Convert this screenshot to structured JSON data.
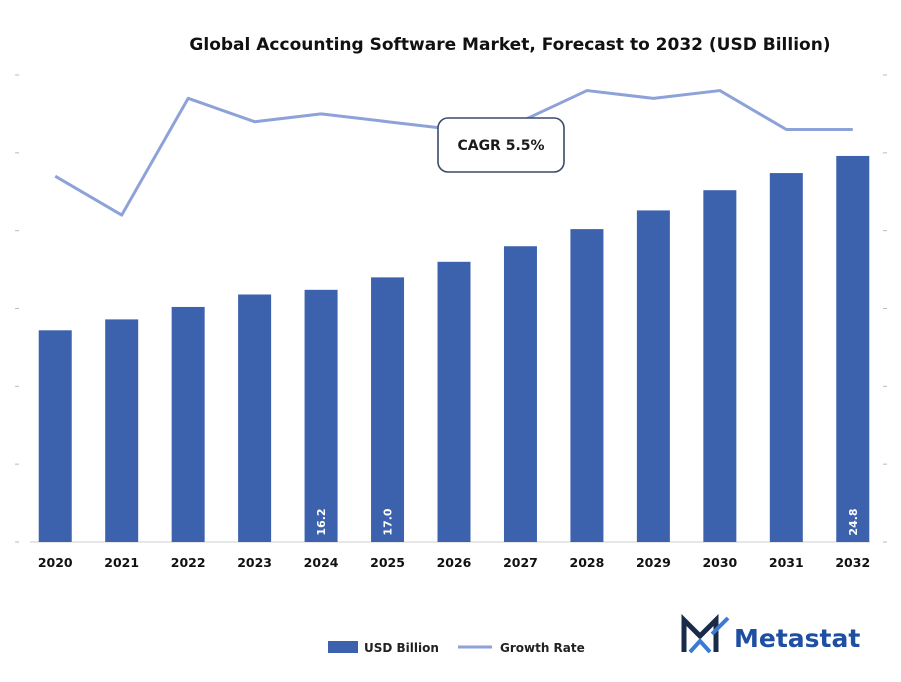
{
  "chart_data": {
    "type": "bar",
    "title": "Global Accounting Software Market, Forecast to 2032 (USD Billion)",
    "categories": [
      "2020",
      "2021",
      "2022",
      "2023",
      "2024",
      "2025",
      "2026",
      "2027",
      "2028",
      "2029",
      "2030",
      "2031",
      "2032"
    ],
    "series": [
      {
        "name": "USD Billion",
        "type": "bar",
        "axis": "left",
        "color": "#3c62ad",
        "values": [
          13.6,
          14.3,
          15.1,
          15.9,
          16.2,
          17.0,
          18.0,
          19.0,
          20.1,
          21.3,
          22.6,
          23.7,
          24.8
        ],
        "labels": [
          "",
          "",
          "",
          "",
          "16.2",
          "17.0",
          "",
          "",
          "",
          "",
          "",
          "",
          "24.8"
        ]
      },
      {
        "name": "Growth Rate",
        "type": "line",
        "axis": "right",
        "color": "#8da2d8",
        "values": [
          4.7,
          4.2,
          5.7,
          5.4,
          5.5,
          5.4,
          5.3,
          5.4,
          5.8,
          5.7,
          5.8,
          5.3,
          5.3
        ]
      }
    ],
    "ylim": [
      0,
      30
    ],
    "y2lim": [
      0,
      6
    ],
    "legend": "bottom-center",
    "grid": false,
    "annotation": "CAGR 5.5%"
  },
  "brand": {
    "name": "Metastat",
    "logo": "metastat-m-logo-icon",
    "color": "#1f4fa3"
  }
}
